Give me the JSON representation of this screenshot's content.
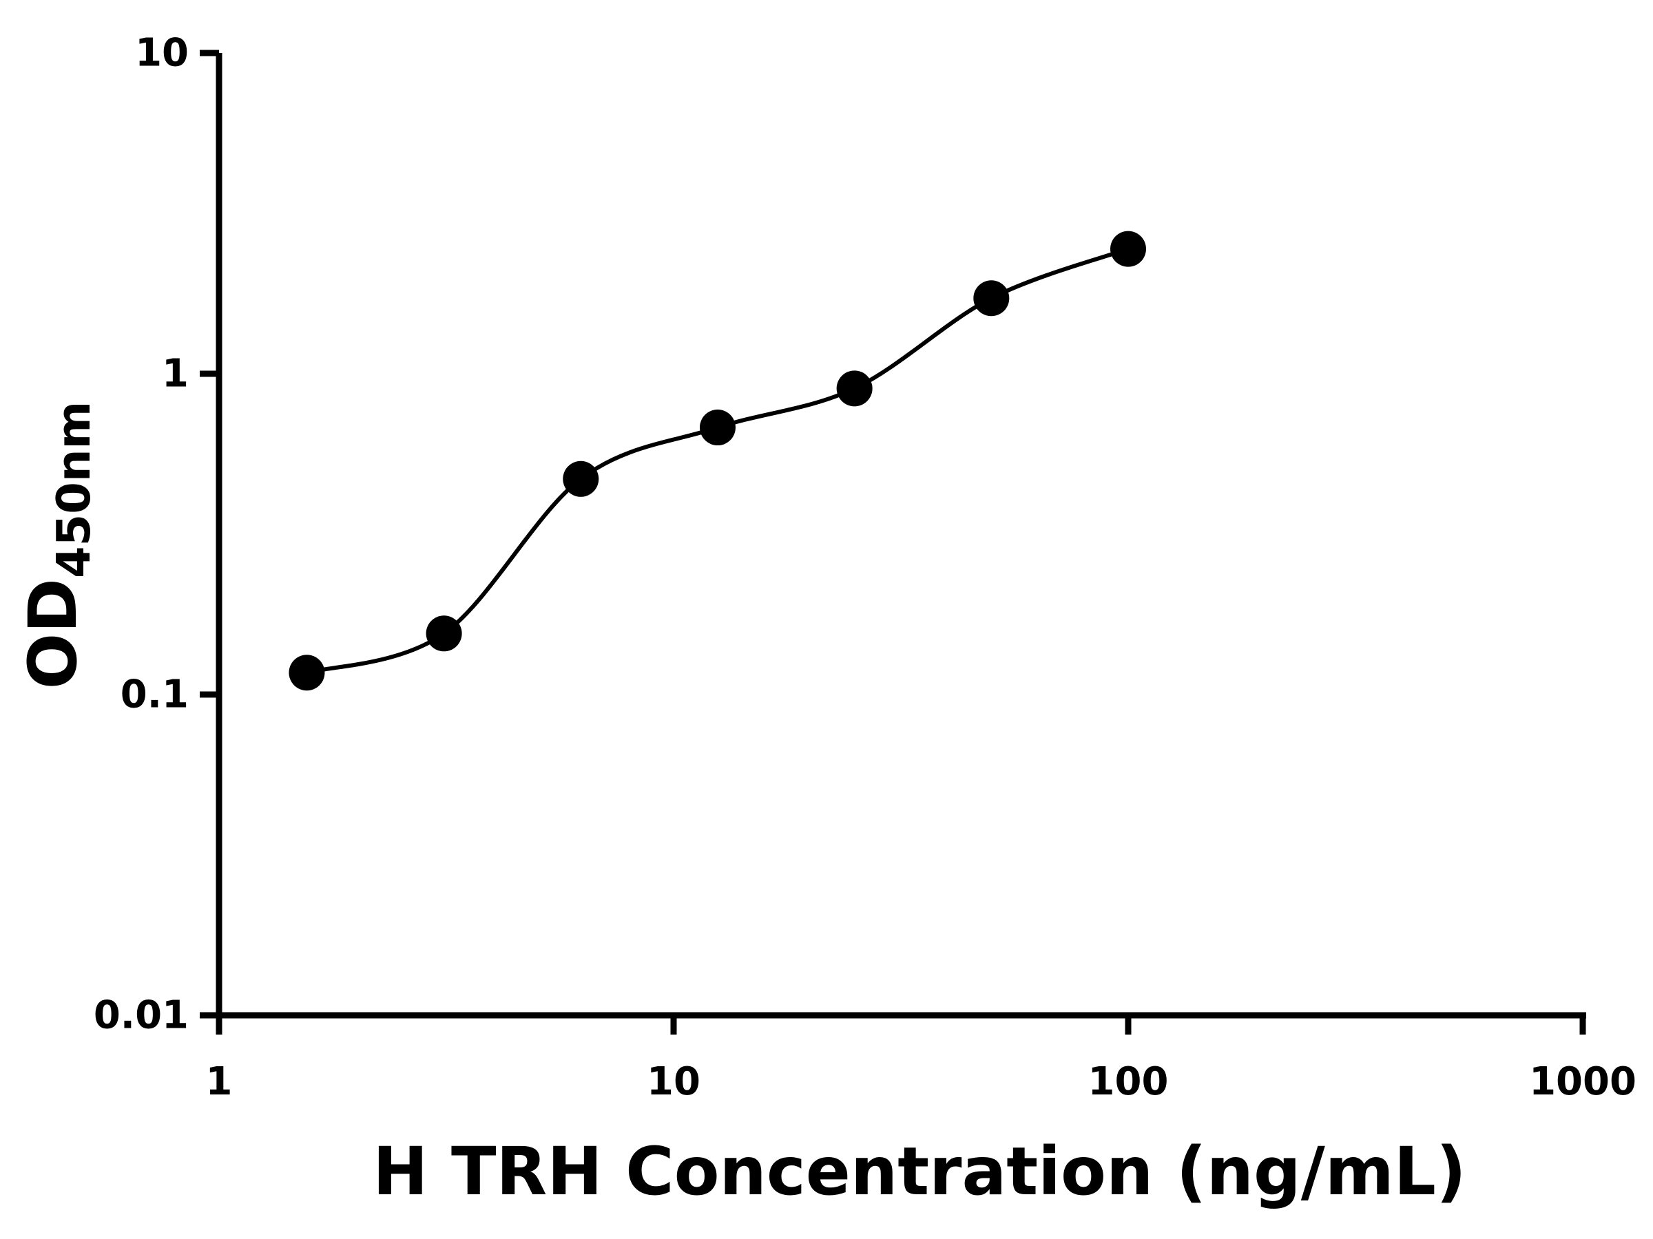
{
  "figure": {
    "background": "#ffffff"
  },
  "chart_data": {
    "type": "scatter",
    "title": "",
    "xlabel": "H TRH Concentration (ng/mL)",
    "ylabel_main": "OD",
    "ylabel_sub": "450nm",
    "x_scale": "log10",
    "y_scale": "log10",
    "xlim": [
      1,
      1000
    ],
    "ylim": [
      0.01,
      10
    ],
    "x_ticks": [
      "1",
      "10",
      "100",
      "1000"
    ],
    "y_ticks": [
      "0.01",
      "0.1",
      "1",
      "10"
    ],
    "grid": false,
    "legend": "none",
    "marker": {
      "shape": "circle",
      "color": "#000000"
    },
    "line": {
      "color": "#000000",
      "style": "smooth-fit-through-standards"
    },
    "colors": {
      "axis": "#000000",
      "text": "#000000",
      "background": "#ffffff"
    },
    "points": [
      {
        "x": 1.56,
        "y": 0.117
      },
      {
        "x": 3.125,
        "y": 0.155
      },
      {
        "x": 6.25,
        "y": 0.47
      },
      {
        "x": 12.5,
        "y": 0.68
      },
      {
        "x": 25,
        "y": 0.9
      },
      {
        "x": 50,
        "y": 1.72
      },
      {
        "x": 100,
        "y": 2.45
      }
    ]
  }
}
